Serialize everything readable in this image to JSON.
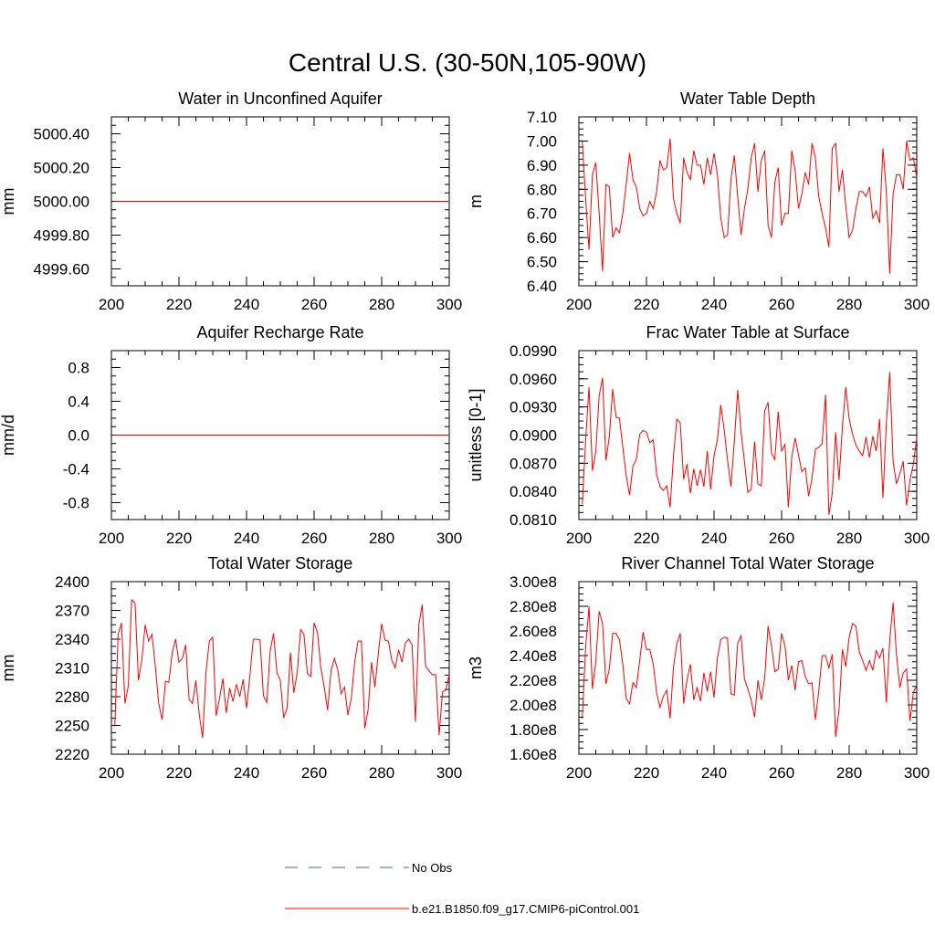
{
  "figure": {
    "title": "Central U.S. (30-50N,105-90W)",
    "colors": {
      "model": "#ff0000",
      "obs": "#3f5fbf",
      "axis": "#000000"
    }
  },
  "legend": {
    "items": [
      {
        "label": "No Obs",
        "style": "dashed",
        "color": "#3f5fbf"
      },
      {
        "label": "b.e21.B1850.f09_g17.CMIP6-piControl.001",
        "style": "solid",
        "color": "#ff0000"
      }
    ]
  },
  "chart_data": [
    {
      "type": "line",
      "title": "Water in Unconfined Aquifer",
      "ylabel": "mm",
      "xlim": [
        200,
        300
      ],
      "ylim": [
        4999.5,
        5000.5
      ],
      "xticks": [
        200,
        220,
        240,
        260,
        280,
        300
      ],
      "yticks": [
        4999.6,
        4999.8,
        5000.0,
        5000.2,
        5000.4
      ],
      "ytick_labels": [
        "4999.60",
        "4999.80",
        "5000.00",
        "5000.20",
        "5000.40"
      ],
      "series": [
        {
          "x": [
            201,
            300
          ],
          "y": [
            5000.0,
            5000.0
          ]
        }
      ]
    },
    {
      "type": "line",
      "title": "Water Table Depth",
      "ylabel": "m",
      "xlim": [
        200,
        300
      ],
      "ylim": [
        6.4,
        7.1
      ],
      "xticks": [
        200,
        220,
        240,
        260,
        280,
        300
      ],
      "yticks": [
        6.4,
        6.5,
        6.6,
        6.7,
        6.8,
        6.9,
        7.0,
        7.1
      ],
      "ytick_labels": [
        "6.40",
        "6.50",
        "6.60",
        "6.70",
        "6.80",
        "6.90",
        "7.00",
        "7.10"
      ],
      "series": [
        {
          "x_start": 201,
          "x_step": 1,
          "y": [
            7.0,
            6.76,
            6.55,
            6.86,
            6.91,
            6.7,
            6.46,
            6.82,
            6.81,
            6.6,
            6.64,
            6.62,
            6.7,
            6.82,
            6.95,
            6.84,
            6.81,
            6.72,
            6.69,
            6.7,
            6.75,
            6.72,
            6.79,
            6.92,
            6.88,
            6.89,
            7.01,
            6.76,
            6.7,
            6.66,
            6.93,
            6.87,
            6.84,
            6.96,
            6.9,
            6.9,
            6.82,
            6.93,
            6.86,
            6.95,
            6.86,
            6.68,
            6.6,
            6.61,
            6.84,
            6.94,
            6.77,
            6.61,
            6.72,
            6.8,
            6.93,
            6.99,
            6.79,
            6.92,
            6.96,
            6.65,
            6.6,
            6.83,
            6.89,
            6.65,
            6.7,
            6.7,
            6.96,
            6.88,
            6.72,
            6.78,
            6.87,
            6.82,
            6.99,
            6.93,
            6.77,
            6.7,
            6.64,
            6.56,
            6.97,
            6.99,
            6.79,
            6.88,
            6.73,
            6.6,
            6.63,
            6.72,
            6.79,
            6.79,
            6.77,
            6.81,
            6.68,
            6.71,
            6.66,
            6.97,
            6.79,
            6.45,
            6.78,
            6.86,
            6.86,
            6.8,
            7.0,
            6.92,
            6.93,
            6.85
          ]
        }
      ]
    },
    {
      "type": "line",
      "title": "Aquifer Recharge Rate",
      "ylabel": "mm/d",
      "xlim": [
        200,
        300
      ],
      "ylim": [
        -1.0,
        1.0
      ],
      "xticks": [
        200,
        220,
        240,
        260,
        280,
        300
      ],
      "yticks": [
        -0.8,
        -0.4,
        0.0,
        0.4,
        0.8
      ],
      "ytick_labels": [
        "-0.8",
        "-0.4",
        "0.0",
        "0.4",
        "0.8"
      ],
      "series": [
        {
          "x": [
            201,
            300
          ],
          "y": [
            0.0,
            0.0
          ]
        }
      ]
    },
    {
      "type": "line",
      "title": "Frac Water Table at Surface",
      "ylabel": "unitless [0-1]",
      "xlim": [
        200,
        300
      ],
      "ylim": [
        0.081,
        0.099
      ],
      "xticks": [
        200,
        220,
        240,
        260,
        280,
        300
      ],
      "yticks": [
        0.081,
        0.084,
        0.087,
        0.09,
        0.093,
        0.096,
        0.099
      ],
      "ytick_labels": [
        "0.0810",
        "0.0840",
        "0.0870",
        "0.0900",
        "0.0930",
        "0.0960",
        "0.0990"
      ],
      "series": [
        {
          "x_start": 201,
          "x_step": 1,
          "y": [
            0.0826,
            0.0895,
            0.0951,
            0.0862,
            0.0882,
            0.0942,
            0.0961,
            0.0873,
            0.0898,
            0.0949,
            0.0919,
            0.0918,
            0.0887,
            0.0857,
            0.0836,
            0.0867,
            0.0874,
            0.0901,
            0.0905,
            0.0903,
            0.0892,
            0.0895,
            0.0858,
            0.0845,
            0.0841,
            0.0846,
            0.0823,
            0.0878,
            0.0917,
            0.0913,
            0.0853,
            0.0869,
            0.0838,
            0.0864,
            0.0846,
            0.0863,
            0.0845,
            0.0883,
            0.0842,
            0.0878,
            0.0895,
            0.0932,
            0.0906,
            0.0873,
            0.0845,
            0.0893,
            0.0948,
            0.0903,
            0.0872,
            0.0839,
            0.0842,
            0.0893,
            0.0848,
            0.0846,
            0.0926,
            0.0935,
            0.0881,
            0.0874,
            0.0925,
            0.0883,
            0.089,
            0.0823,
            0.0876,
            0.0897,
            0.0879,
            0.0861,
            0.0865,
            0.0835,
            0.0854,
            0.0885,
            0.0887,
            0.0891,
            0.0943,
            0.0815,
            0.0838,
            0.0903,
            0.0852,
            0.0909,
            0.0951,
            0.0917,
            0.0901,
            0.0889,
            0.0883,
            0.0878,
            0.0898,
            0.0876,
            0.0899,
            0.0883,
            0.0917,
            0.0833,
            0.0912,
            0.0967,
            0.0872,
            0.0848,
            0.0859,
            0.0872,
            0.0825,
            0.0852,
            0.0869,
            0.0897
          ]
        }
      ]
    },
    {
      "type": "line",
      "title": "Total Water Storage",
      "ylabel": "mm",
      "xlim": [
        200,
        300
      ],
      "ylim": [
        2220,
        2400
      ],
      "xticks": [
        200,
        220,
        240,
        260,
        280,
        300
      ],
      "yticks": [
        2220,
        2250,
        2280,
        2310,
        2340,
        2370,
        2400
      ],
      "ytick_labels": [
        "2220",
        "2250",
        "2280",
        "2310",
        "2340",
        "2370",
        "2400"
      ],
      "series": [
        {
          "x_start": 201,
          "x_step": 1,
          "y": [
            2249,
            2345,
            2357,
            2273,
            2291,
            2381,
            2378,
            2297,
            2318,
            2355,
            2338,
            2345,
            2312,
            2273,
            2256,
            2296,
            2295,
            2326,
            2340,
            2316,
            2320,
            2334,
            2277,
            2273,
            2297,
            2262,
            2237,
            2306,
            2338,
            2342,
            2260,
            2278,
            2299,
            2263,
            2289,
            2275,
            2293,
            2280,
            2298,
            2268,
            2302,
            2340,
            2340,
            2339,
            2281,
            2274,
            2328,
            2346,
            2305,
            2297,
            2258,
            2268,
            2326,
            2284,
            2305,
            2350,
            2345,
            2304,
            2301,
            2357,
            2347,
            2310,
            2290,
            2266,
            2307,
            2320,
            2308,
            2283,
            2290,
            2261,
            2278,
            2316,
            2338,
            2338,
            2247,
            2267,
            2316,
            2290,
            2325,
            2356,
            2339,
            2338,
            2318,
            2310,
            2329,
            2316,
            2336,
            2340,
            2334,
            2254,
            2355,
            2376,
            2312,
            2307,
            2303,
            2303,
            2240,
            2285,
            2287,
            2303
          ]
        }
      ]
    },
    {
      "type": "line",
      "title": "River Channel Total Water Storage",
      "ylabel": "m3",
      "xlim": [
        200,
        300
      ],
      "ylim": [
        160000000,
        300000000
      ],
      "xticks": [
        200,
        220,
        240,
        260,
        280,
        300
      ],
      "yticks": [
        160000000,
        180000000,
        200000000,
        220000000,
        240000000,
        260000000,
        280000000,
        300000000
      ],
      "ytick_labels": [
        "1.60e8",
        "1.80e8",
        "2.00e8",
        "2.20e8",
        "2.40e8",
        "2.60e8",
        "2.80e8",
        "3.00e8"
      ],
      "series": [
        {
          "x_start": 201,
          "x_step": 1,
          "y": [
            189000000,
            247000000,
            280000000,
            213000000,
            235000000,
            276000000,
            266000000,
            217000000,
            229000000,
            258000000,
            258000000,
            253000000,
            233000000,
            205000000,
            201000000,
            218000000,
            214000000,
            236000000,
            259000000,
            245000000,
            245000000,
            233000000,
            210000000,
            198000000,
            207000000,
            212000000,
            189000000,
            231000000,
            250000000,
            258000000,
            201000000,
            220000000,
            233000000,
            204000000,
            214000000,
            203000000,
            226000000,
            211000000,
            227000000,
            206000000,
            238000000,
            253000000,
            255000000,
            254000000,
            209000000,
            208000000,
            250000000,
            256000000,
            221000000,
            213000000,
            204000000,
            190000000,
            220000000,
            204000000,
            222000000,
            264000000,
            248000000,
            227000000,
            229000000,
            258000000,
            248000000,
            220000000,
            232000000,
            212000000,
            235000000,
            236000000,
            223000000,
            217000000,
            218000000,
            188000000,
            211000000,
            240000000,
            240000000,
            230000000,
            241000000,
            174000000,
            196000000,
            245000000,
            231000000,
            255000000,
            266000000,
            264000000,
            243000000,
            236000000,
            228000000,
            236000000,
            228000000,
            244000000,
            238000000,
            246000000,
            202000000,
            252000000,
            283000000,
            241000000,
            214000000,
            226000000,
            229000000,
            187000000,
            210000000,
            216000000
          ]
        }
      ]
    }
  ]
}
